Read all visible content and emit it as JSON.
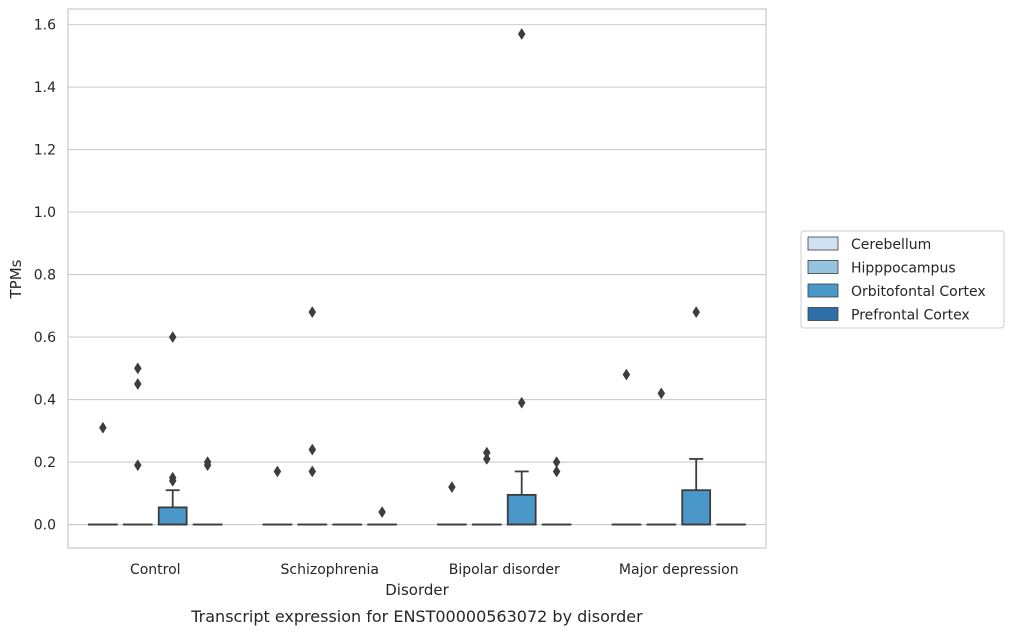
{
  "chart_data": {
    "type": "box",
    "caption": "Transcript expression for ENST00000563072 by disorder",
    "xlabel": "Disorder",
    "ylabel": "TPMs",
    "ylim": [
      -0.075,
      1.65
    ],
    "yticks": [
      "0.0",
      "0.2",
      "0.4",
      "0.6",
      "0.8",
      "1.0",
      "1.2",
      "1.4",
      "1.6"
    ],
    "ytick_values": [
      0,
      0.2,
      0.4,
      0.6,
      0.8,
      1.0,
      1.2,
      1.4,
      1.6
    ],
    "grid": true,
    "legend_position": "right",
    "categories": [
      "Control",
      "Schizophrenia",
      "Bipolar disorder",
      "Major depression"
    ],
    "series": [
      {
        "name": "Cerebellum",
        "color": "#d0e1f2",
        "boxes": [
          {
            "q1": 0,
            "median": 0,
            "q3": 0,
            "whisker_low": 0,
            "whisker_high": 0,
            "outliers": [
              0.31
            ]
          },
          {
            "q1": 0,
            "median": 0,
            "q3": 0,
            "whisker_low": 0,
            "whisker_high": 0,
            "outliers": [
              0.17
            ]
          },
          {
            "q1": 0,
            "median": 0,
            "q3": 0,
            "whisker_low": 0,
            "whisker_high": 0,
            "outliers": [
              0.12
            ]
          },
          {
            "q1": 0,
            "median": 0,
            "q3": 0,
            "whisker_low": 0,
            "whisker_high": 0,
            "outliers": [
              0.48
            ]
          }
        ]
      },
      {
        "name": "Hipppocampus",
        "color": "#94c4df",
        "boxes": [
          {
            "q1": 0,
            "median": 0,
            "q3": 0,
            "whisker_low": 0,
            "whisker_high": 0,
            "outliers": [
              0.5,
              0.45,
              0.19
            ]
          },
          {
            "q1": 0,
            "median": 0,
            "q3": 0,
            "whisker_low": 0,
            "whisker_high": 0,
            "outliers": [
              0.68,
              0.24,
              0.17
            ]
          },
          {
            "q1": 0,
            "median": 0,
            "q3": 0,
            "whisker_low": 0,
            "whisker_high": 0,
            "outliers": [
              0.23,
              0.21
            ]
          },
          {
            "q1": 0,
            "median": 0,
            "q3": 0,
            "whisker_low": 0,
            "whisker_high": 0,
            "outliers": [
              0.42
            ]
          }
        ]
      },
      {
        "name": "Orbitofontal Cortex",
        "color": "#4a98c9",
        "boxes": [
          {
            "q1": 0,
            "median": 0,
            "q3": 0.055,
            "whisker_low": 0,
            "whisker_high": 0.11,
            "outliers": [
              0.6,
              0.15,
              0.14
            ]
          },
          {
            "q1": 0,
            "median": 0,
            "q3": 0,
            "whisker_low": 0,
            "whisker_high": 0,
            "outliers": []
          },
          {
            "q1": 0,
            "median": 0,
            "q3": 0.095,
            "whisker_low": 0,
            "whisker_high": 0.17,
            "outliers": [
              1.57,
              0.39
            ]
          },
          {
            "q1": 0,
            "median": 0,
            "q3": 0.11,
            "whisker_low": 0,
            "whisker_high": 0.21,
            "outliers": [
              0.68
            ]
          }
        ]
      },
      {
        "name": "Prefrontal Cortex",
        "color": "#2e6fa7",
        "boxes": [
          {
            "q1": 0,
            "median": 0,
            "q3": 0,
            "whisker_low": 0,
            "whisker_high": 0,
            "outliers": [
              0.2,
              0.19
            ]
          },
          {
            "q1": 0,
            "median": 0,
            "q3": 0,
            "whisker_low": 0,
            "whisker_high": 0,
            "outliers": [
              0.04
            ]
          },
          {
            "q1": 0,
            "median": 0,
            "q3": 0,
            "whisker_low": 0,
            "whisker_high": 0,
            "outliers": [
              0.2,
              0.17
            ]
          },
          {
            "q1": 0,
            "median": 0,
            "q3": 0,
            "whisker_low": 0,
            "whisker_high": 0,
            "outliers": []
          }
        ]
      }
    ]
  }
}
